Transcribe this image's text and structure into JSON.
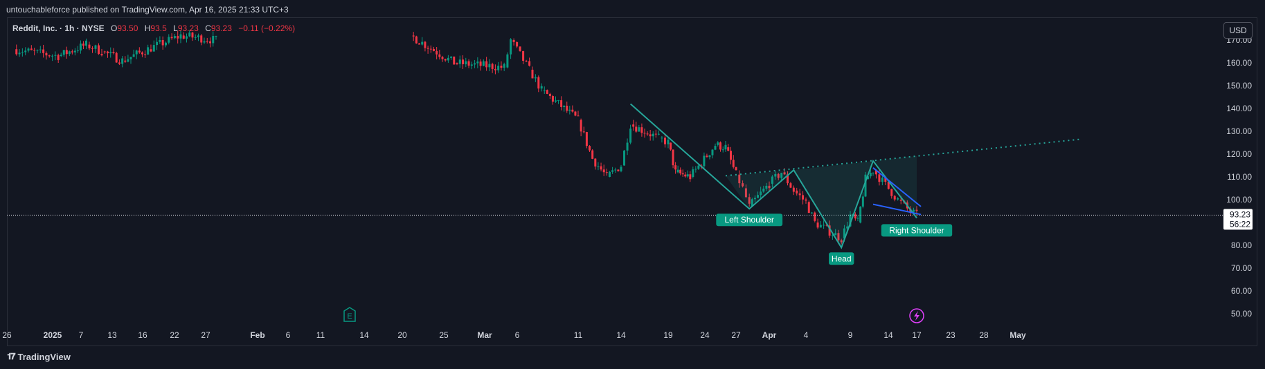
{
  "publisher_line": "untouchableforce published on TradingView.com, Apr 16, 2025 21:33 UTC+3",
  "legend": {
    "symbol": "Reddit, Inc. · 1h · NYSE",
    "o_label": "O",
    "o_value": "93.50",
    "h_label": "H",
    "h_value": "93.5",
    "l_label": "L",
    "l_value": "93.23",
    "c_label": "C",
    "c_value": "93.23",
    "change": "−0.11 (−0.22%)"
  },
  "currency_button": "USD",
  "last_price": "93.23",
  "countdown": "56:22",
  "brand": "TradingView",
  "colors": {
    "up": "#089981",
    "down": "#f23645",
    "pattern": "#26a69a",
    "wedge": "#2962ff",
    "label_bg": "#089981",
    "background": "#131722"
  },
  "icons": {
    "earnings": "E",
    "split": "lightning-icon"
  },
  "chart_data": {
    "type": "line",
    "title": "",
    "symbol": "Reddit, Inc. · 1h · NYSE",
    "ylim": [
      45,
      172
    ],
    "y_ticks": [
      "50.00",
      "60.00",
      "70.00",
      "80.00",
      "90.00",
      "100.00",
      "110.00",
      "120.00",
      "130.00",
      "140.00",
      "150.00",
      "160.00",
      "170.00"
    ],
    "x_tick_labels": [
      "26",
      "2025",
      "7",
      "13",
      "16",
      "22",
      "27",
      "Feb",
      "6",
      "11",
      "14",
      "20",
      "25",
      "Mar",
      "6",
      "11",
      "14",
      "19",
      "24",
      "27",
      "Apr",
      "4",
      "9",
      "14",
      "17",
      "23",
      "28",
      "May"
    ],
    "grid": false,
    "price_path": [
      {
        "x": "Dec 26",
        "close": 166
      },
      {
        "x": "Jan 2",
        "close": 163
      },
      {
        "x": "Jan 7",
        "close": 168
      },
      {
        "x": "Jan 10",
        "close": 165
      },
      {
        "x": "Jan 13",
        "close": 161
      },
      {
        "x": "Jan 16",
        "close": 166
      },
      {
        "x": "Jan 22",
        "close": 172
      },
      {
        "x": "Jan 27",
        "close": 170
      },
      {
        "x": "Feb 20",
        "close": 172
      },
      {
        "x": "Feb 25",
        "close": 160
      },
      {
        "x": "Mar 3",
        "close": 158
      },
      {
        "x": "Mar 4",
        "close": 170
      },
      {
        "x": "Mar 6",
        "close": 157
      },
      {
        "x": "Mar 7",
        "close": 148
      },
      {
        "x": "Mar 10",
        "close": 135
      },
      {
        "x": "Mar 11",
        "close": 118
      },
      {
        "x": "Mar 12",
        "close": 110
      },
      {
        "x": "Mar 13",
        "close": 115
      },
      {
        "x": "Mar 14",
        "close": 133
      },
      {
        "x": "Mar 17",
        "close": 127
      },
      {
        "x": "Mar 18",
        "close": 125
      },
      {
        "x": "Mar 19",
        "close": 112
      },
      {
        "x": "Mar 20",
        "close": 111
      },
      {
        "x": "Mar 21",
        "close": 110
      },
      {
        "x": "Mar 24",
        "close": 124
      },
      {
        "x": "Mar 25",
        "close": 123
      },
      {
        "x": "Mar 26",
        "close": 111
      },
      {
        "x": "Mar 27",
        "close": 105
      },
      {
        "x": "Mar 28",
        "close": 97
      },
      {
        "x": "Mar 31",
        "close": 107
      },
      {
        "x": "Apr 1",
        "close": 112
      },
      {
        "x": "Apr 2",
        "close": 104
      },
      {
        "x": "Apr 3",
        "close": 99
      },
      {
        "x": "Apr 4",
        "close": 90
      },
      {
        "x": "Apr 7",
        "close": 83
      },
      {
        "x": "Apr 8",
        "close": 93
      },
      {
        "x": "Apr 9",
        "close": 90
      },
      {
        "x": "Apr 10",
        "close": 109
      },
      {
        "x": "Apr 11",
        "close": 113
      },
      {
        "x": "Apr 14",
        "close": 100
      },
      {
        "x": "Apr 15",
        "close": 96
      },
      {
        "x": "Apr 16",
        "close": 93.23
      }
    ],
    "pattern": {
      "name": "Head and Shoulders",
      "points": [
        {
          "x": "Mar 14",
          "y": 142
        },
        {
          "x": "Mar 28",
          "y": 96
        },
        {
          "x": "Apr 2",
          "y": 113
        },
        {
          "x": "Apr 7",
          "y": 79
        },
        {
          "x": "Apr 11",
          "y": 117
        },
        {
          "x": "Apr 16",
          "y": 92
        }
      ],
      "neckline": [
        {
          "x": "Mar 25",
          "y": 110.5
        },
        {
          "x": "May 9",
          "y": 126.5
        }
      ],
      "labels": [
        "Left Shoulder",
        "Head",
        "Right Shoulder"
      ]
    },
    "wedge": {
      "upper": [
        {
          "x": "Apr 11",
          "y": 114
        },
        {
          "x": "Apr 16",
          "y": 97
        }
      ],
      "lower": [
        {
          "x": "Apr 11",
          "y": 98
        },
        {
          "x": "Apr 16",
          "y": 93.5
        }
      ]
    },
    "last_price": 93.23,
    "events": [
      {
        "x": "Feb 12",
        "type": "earnings"
      },
      {
        "x": "Apr 16",
        "type": "split"
      }
    ]
  }
}
